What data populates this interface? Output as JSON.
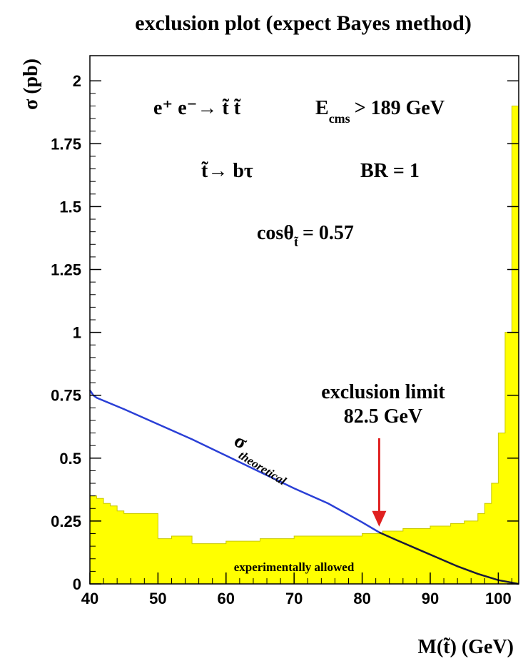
{
  "chart_data": {
    "type": "area",
    "title": "exclusion plot (expect Bayes method)",
    "xlabel": "M(t̃) (GeV)",
    "ylabel": "σ (pb)",
    "xlim": [
      40,
      103
    ],
    "ylim": [
      0,
      2.1
    ],
    "x_ticks": [
      "40",
      "50",
      "60",
      "70",
      "80",
      "90",
      "100"
    ],
    "y_ticks": [
      "0",
      "0.25",
      "0.5",
      "0.75",
      "1",
      "1.25",
      "1.5",
      "1.75",
      "2"
    ],
    "grid": false,
    "series": [
      {
        "kind": "band",
        "color": "#ffff00",
        "x": [
          40,
          41,
          42,
          43,
          44,
          45,
          46,
          47,
          48,
          49,
          50,
          52,
          55,
          60,
          65,
          70,
          75,
          80,
          83,
          86,
          90,
          93,
          95,
          97,
          98,
          99,
          100,
          101,
          102,
          103
        ],
        "y": [
          0.35,
          0.34,
          0.32,
          0.31,
          0.29,
          0.28,
          0.28,
          0.28,
          0.28,
          0.28,
          0.18,
          0.19,
          0.16,
          0.17,
          0.18,
          0.19,
          0.19,
          0.2,
          0.21,
          0.22,
          0.23,
          0.24,
          0.25,
          0.28,
          0.32,
          0.4,
          0.6,
          1.0,
          1.9,
          1.9
        ]
      },
      {
        "kind": "line",
        "color": "#2a3fd6",
        "x": [
          40,
          40.5,
          41,
          45,
          50,
          55,
          60,
          65,
          70,
          75,
          80,
          82.5,
          85,
          88,
          91,
          94,
          97,
          100,
          103
        ],
        "y": [
          0.77,
          0.75,
          0.74,
          0.695,
          0.635,
          0.575,
          0.51,
          0.445,
          0.38,
          0.32,
          0.245,
          0.205,
          0.175,
          0.14,
          0.105,
          0.07,
          0.04,
          0.015,
          0.0
        ]
      }
    ],
    "annotations": {
      "process": "e⁺ e⁻→ t̃ t̃",
      "energy_main": "E",
      "energy_sub": "cms",
      "energy_value": "> 189 GeV",
      "decay": "t̃→ bτ",
      "br": "BR = 1",
      "mixing_main": "cosθ",
      "mixing_sub": "t̃",
      "mixing_value": "= 0.57",
      "limit_line1": "exclusion limit",
      "limit_line2": "82.5 GeV",
      "limit_x": 82.5,
      "sigma_symbol": "σ",
      "sigma_sub": "theoretical",
      "allowed_label": "experimentally allowed"
    }
  }
}
